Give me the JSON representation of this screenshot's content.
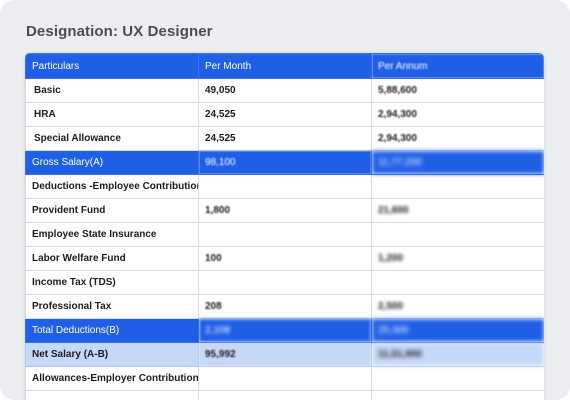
{
  "designation": "Designation: UX Designer",
  "table": {
    "headers": [
      "Particulars",
      "Per Month",
      "Per Annum"
    ],
    "rows": [
      {
        "particular": "Basic",
        "month": "49,050",
        "annum": "5,88,600"
      },
      {
        "particular": "HRA",
        "month": "24,525",
        "annum": "2,94,300"
      },
      {
        "particular": "Special Allowance",
        "month": "24,525",
        "annum": "2,94,300"
      },
      {
        "particular": "Gross Salary(A)",
        "month": "98,100",
        "annum": "11,77,200"
      },
      {
        "particular": "Deductions -Employee Contribution",
        "month": "",
        "annum": ""
      },
      {
        "particular": "Provident Fund",
        "month": "1,800",
        "annum": "21,600"
      },
      {
        "particular": "Employee State Insurance",
        "month": "",
        "annum": ""
      },
      {
        "particular": "Labor Welfare Fund",
        "month": "100",
        "annum": "1,200"
      },
      {
        "particular": "Income Tax (TDS)",
        "month": "",
        "annum": ""
      },
      {
        "particular": "Professional Tax",
        "month": "208",
        "annum": "2,500"
      },
      {
        "particular": "Total Deductions(B)",
        "month": "2,108",
        "annum": "25,300"
      },
      {
        "particular": "Net Salary (A-B)",
        "month": "95,992",
        "annum": "11,51,900"
      },
      {
        "particular": "Allowances-Employer Contribution",
        "month": "",
        "annum": ""
      }
    ]
  },
  "colors": {
    "accent": "#1f5fe6",
    "highlight": "#c6d8f8",
    "background": "#ecedf0"
  }
}
